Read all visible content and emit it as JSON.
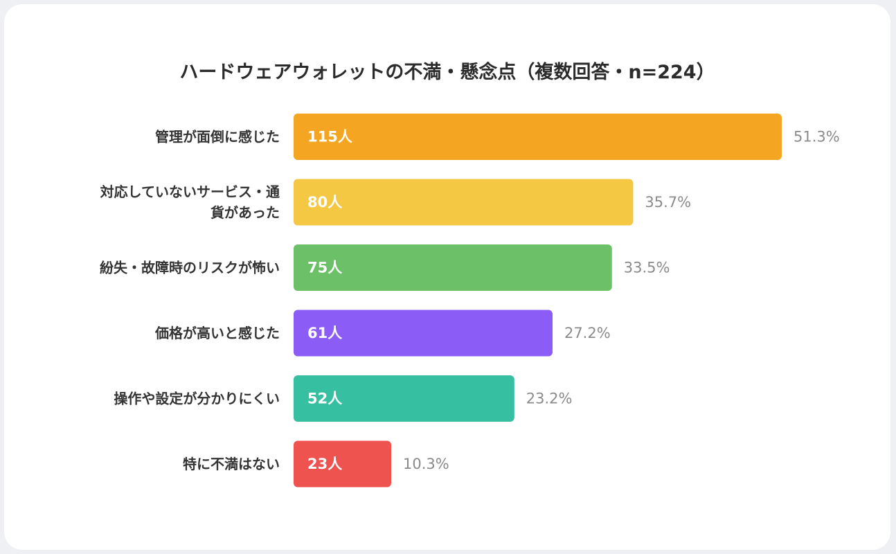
{
  "chart_data": {
    "type": "bar",
    "orientation": "horizontal",
    "title": "ハードウェアウォレットの不満・懸念点（複数回答・n=224）",
    "xlabel": "",
    "ylabel": "",
    "xlim": [
      0,
      115
    ],
    "grid": false,
    "legend": "none",
    "unit": "人",
    "categories": [
      [
        "管理が面倒に感じた"
      ],
      [
        "対応していないサービス・通",
        "貨があった"
      ],
      [
        "紛失・故障時のリスクが怖い"
      ],
      [
        "価格が高いと感じた"
      ],
      [
        "操作や設定が分かりにくい"
      ],
      [
        "特に不満はない"
      ]
    ],
    "values": [
      115,
      80,
      75,
      61,
      52,
      23
    ],
    "value_labels": [
      "115人",
      "80人",
      "75人",
      "61人",
      "52人",
      "23人"
    ],
    "percent_labels": [
      "51.3%",
      "35.7%",
      "33.5%",
      "27.2%",
      "23.2%",
      "10.3%"
    ],
    "colors": [
      "#f4a623",
      "#f4c842",
      "#6cc067",
      "#8b5cf6",
      "#37bfa1",
      "#ef5350"
    ]
  }
}
